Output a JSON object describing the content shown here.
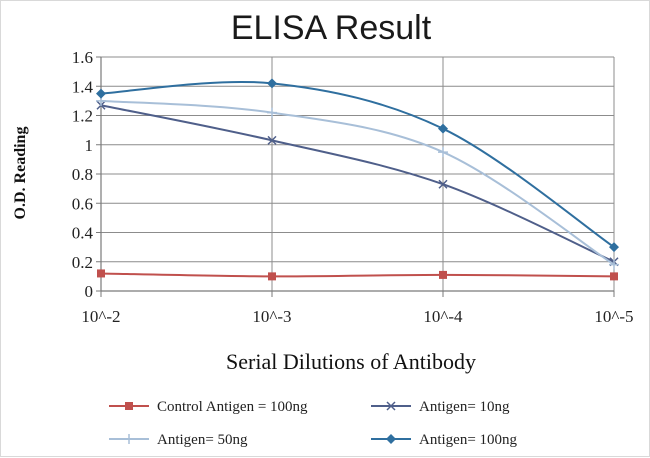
{
  "chart_data": {
    "type": "line",
    "title": "ELISA Result",
    "xlabel": "Serial Dilutions  of Antibody",
    "ylabel": "O.D. Reading",
    "categories": [
      "10^-2",
      "10^-3",
      "10^-4",
      "10^-5"
    ],
    "yticks": [
      "0",
      "0.2",
      "0.4",
      "0.6",
      "0.8",
      "1",
      "1.2",
      "1.4",
      "1.6"
    ],
    "ylim": [
      0,
      1.6
    ],
    "grid": true,
    "legend_position": "bottom",
    "series": [
      {
        "name": "Control Antigen = 100ng",
        "values": [
          0.12,
          0.1,
          0.11,
          0.1
        ],
        "color": "#c0504d",
        "marker": "square"
      },
      {
        "name": "Antigen= 10ng",
        "values": [
          1.27,
          1.03,
          0.73,
          0.2
        ],
        "color": "#4f5f8a",
        "marker": "x"
      },
      {
        "name": "Antigen= 50ng",
        "values": [
          1.3,
          1.22,
          0.95,
          0.18
        ],
        "color": "#a8bfd8",
        "marker": "plus"
      },
      {
        "name": "Antigen= 100ng",
        "values": [
          1.35,
          1.42,
          1.11,
          0.3
        ],
        "color": "#2f6f9f",
        "marker": "diamond"
      }
    ]
  }
}
